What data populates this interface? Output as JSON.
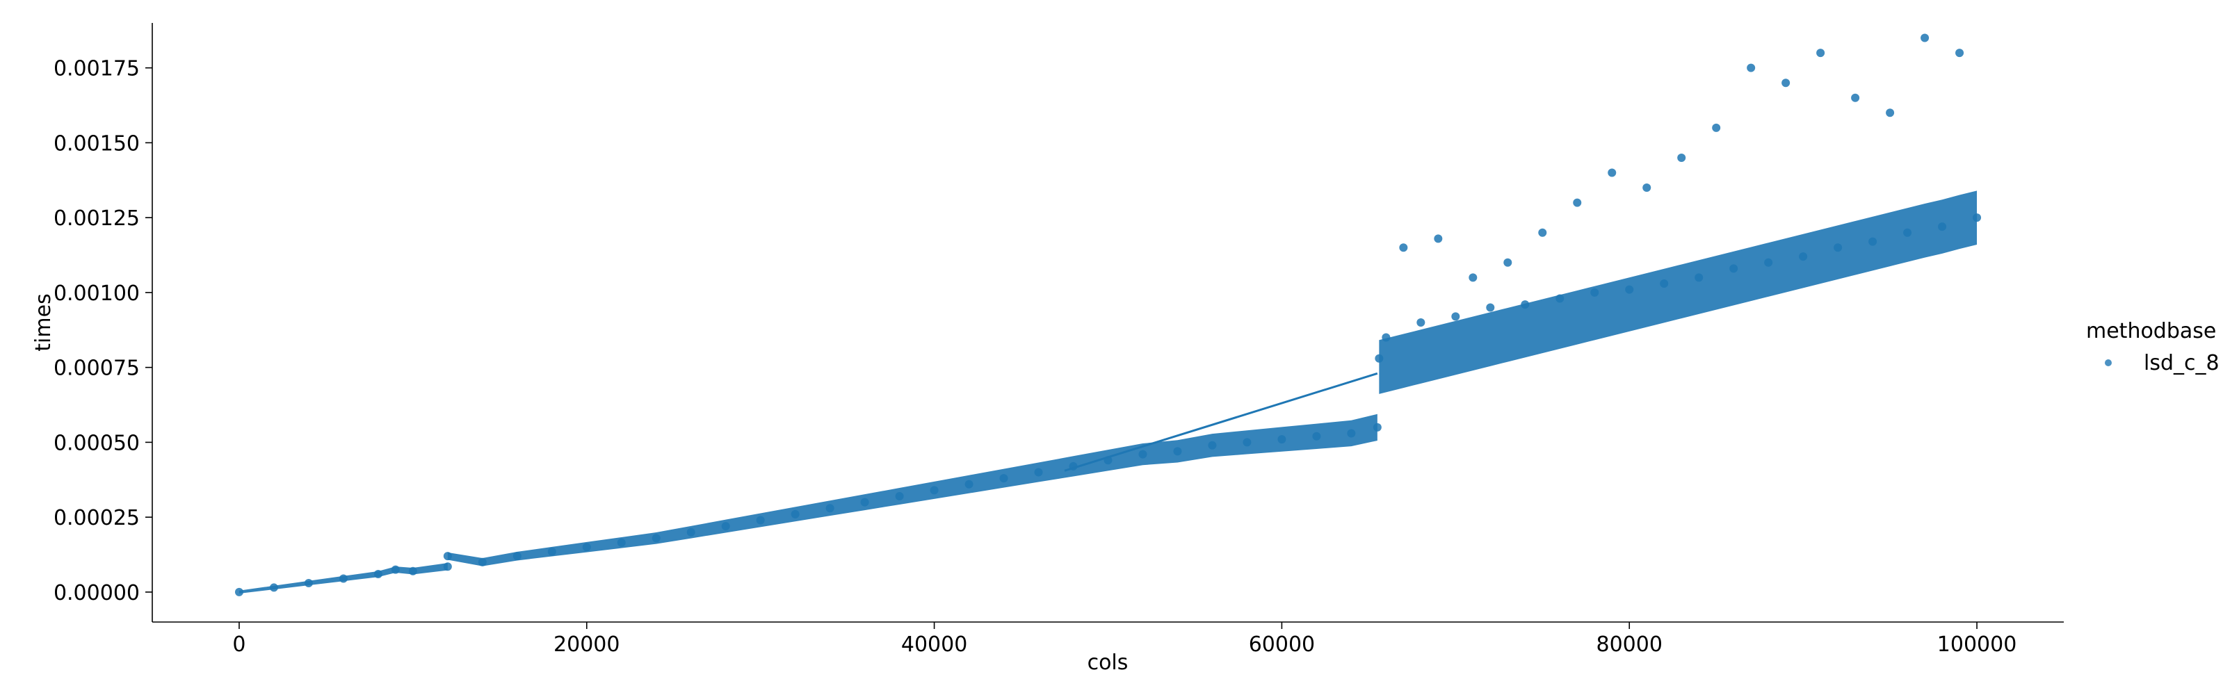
{
  "chart_data": {
    "type": "scatter",
    "title": "",
    "xlabel": "cols",
    "ylabel": "times",
    "xlim": [
      -5000,
      105000
    ],
    "ylim": [
      -0.0001,
      0.0019
    ],
    "xticks": [
      0,
      20000,
      40000,
      60000,
      80000,
      100000
    ],
    "xtick_labels": [
      "0",
      "20000",
      "40000",
      "60000",
      "80000",
      "100000"
    ],
    "yticks": [
      0.0,
      0.00025,
      0.0005,
      0.00075,
      0.001,
      0.00125,
      0.0015,
      0.00175
    ],
    "ytick_labels": [
      "0.00000",
      "0.00025",
      "0.00050",
      "0.00075",
      "0.00100",
      "0.00125",
      "0.00150",
      "0.00175"
    ],
    "grid": false,
    "legend": {
      "title": "methodbase",
      "placement": "right",
      "entries": [
        {
          "name": "lsd_c_8",
          "color": "#1f77b4"
        }
      ]
    },
    "series": [
      {
        "name": "lsd_c_8",
        "color": "#1f77b4",
        "regression_line": {
          "x": [
            0,
            100000
          ],
          "y": [
            0.0,
            0.00125
          ]
        },
        "x": [
          0,
          2000,
          4000,
          6000,
          8000,
          9000,
          10000,
          12000,
          12000,
          14000,
          16000,
          18000,
          20000,
          22000,
          24000,
          26000,
          28000,
          30000,
          32000,
          34000,
          36000,
          38000,
          40000,
          42000,
          44000,
          46000,
          48000,
          50000,
          52000,
          54000,
          56000,
          58000,
          60000,
          62000,
          64000,
          65500,
          65600,
          66000,
          67000,
          68000,
          69000,
          70000,
          71000,
          72000,
          73000,
          74000,
          75000,
          76000,
          77000,
          78000,
          79000,
          80000,
          81000,
          82000,
          83000,
          84000,
          85000,
          86000,
          87000,
          88000,
          89000,
          90000,
          91000,
          92000,
          93000,
          94000,
          95000,
          96000,
          97000,
          98000,
          99000,
          100000
        ],
        "y": [
          0.0,
          1.5e-05,
          3e-05,
          4.5e-05,
          6e-05,
          7.5e-05,
          7e-05,
          8.5e-05,
          0.00012,
          0.0001,
          0.00012,
          0.000135,
          0.00015,
          0.000165,
          0.00018,
          0.0002,
          0.00022,
          0.00024,
          0.00026,
          0.00028,
          0.0003,
          0.00032,
          0.00034,
          0.00036,
          0.00038,
          0.0004,
          0.00042,
          0.00044,
          0.00046,
          0.00047,
          0.00049,
          0.0005,
          0.00051,
          0.00052,
          0.00053,
          0.00055,
          0.00078,
          0.00085,
          0.00115,
          0.0009,
          0.00118,
          0.00092,
          0.00105,
          0.00095,
          0.0011,
          0.00096,
          0.0012,
          0.00098,
          0.0013,
          0.001,
          0.0014,
          0.00101,
          0.00135,
          0.00103,
          0.00145,
          0.00105,
          0.00155,
          0.00108,
          0.00175,
          0.0011,
          0.0017,
          0.00112,
          0.0018,
          0.00115,
          0.00165,
          0.00117,
          0.0016,
          0.0012,
          0.00185,
          0.00122,
          0.0018,
          0.00125
        ]
      }
    ]
  }
}
